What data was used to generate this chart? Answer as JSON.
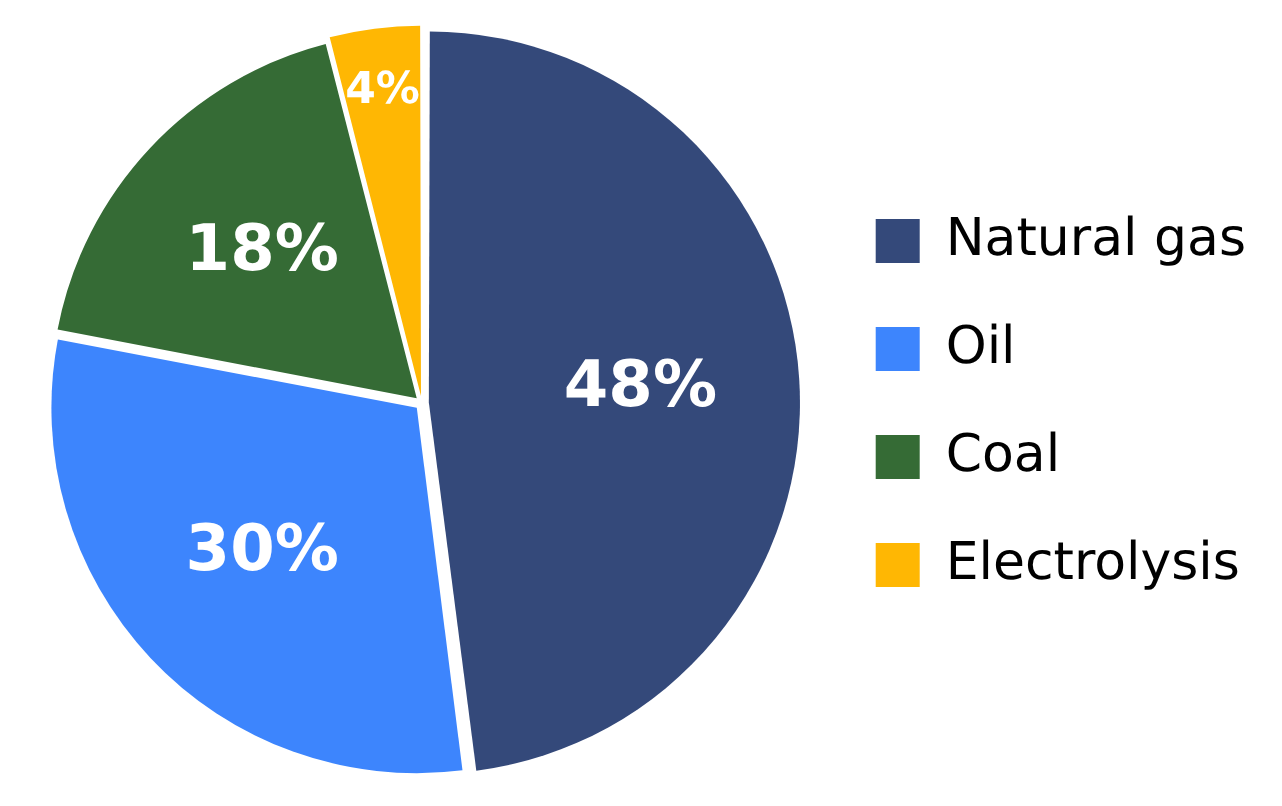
{
  "chart_data": {
    "type": "pie",
    "categories": [
      "Natural gas",
      "Oil",
      "Coal",
      "Electrolysis"
    ],
    "values": [
      48,
      30,
      18,
      4
    ],
    "colors": [
      "#34497a",
      "#3d85fd",
      "#356b35",
      "#ffb703"
    ],
    "value_labels": [
      "48%",
      "30%",
      "18%",
      "4%"
    ],
    "legend": "right"
  }
}
